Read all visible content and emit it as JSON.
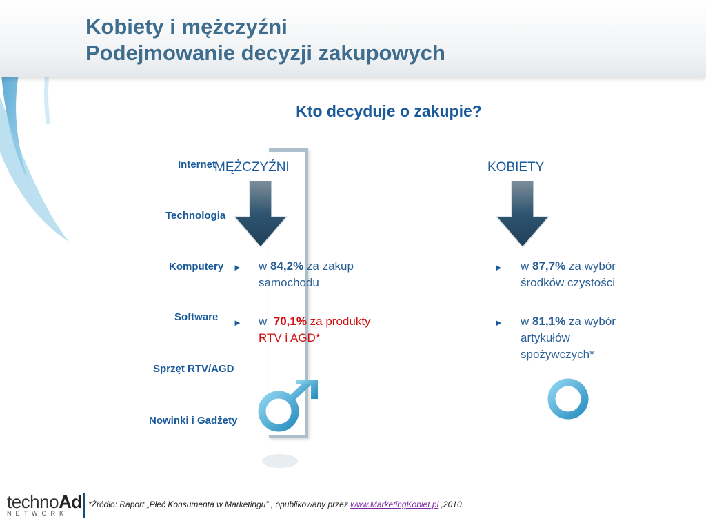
{
  "slide": {
    "title_line1": "Kobiety i mężczyźni",
    "title_line2": "Podejmowanie decyzji zakupowych",
    "question": "Kto decyduje o zakupie?"
  },
  "left_labels": [
    "Internet",
    "Technologia",
    "Komputery",
    "Software",
    "Sprzęt RTV/AGD",
    "Nowinki i Gadżety"
  ],
  "men": {
    "heading": "MĘŻCZYŹNI",
    "stat1": {
      "prefix": "w ",
      "value": "84,2%",
      "text": " za zakup samochodu"
    },
    "stat2": {
      "prefix": "w  ",
      "value": "70,1%",
      "text": " za produkty RTV i AGD*"
    }
  },
  "women": {
    "heading": "KOBIETY",
    "stat1": {
      "prefix": "w ",
      "value": "87,7%",
      "text": " za wybór środków czystości"
    },
    "stat2": {
      "prefix": "w ",
      "value": "81,1%",
      "text": " za wybór artykułów spożywczych*"
    }
  },
  "bullet_glyph": "►",
  "footer": {
    "logo_main": "techno",
    "logo_bold": "Ad",
    "logo_sub": "NETWORK",
    "source_text": "*Źródło: Raport „Płeć Konsumenta w Marketingu” , opublikowany przez ",
    "source_link": "www.MarketingKobiet.pl",
    "source_suffix": " ,2010."
  },
  "colors": {
    "title": "#3e6d8e",
    "accent": "#1a5a9a",
    "highlight": "#d01010",
    "symbol": "#4ab3d6",
    "arrow": "#2e5470"
  }
}
